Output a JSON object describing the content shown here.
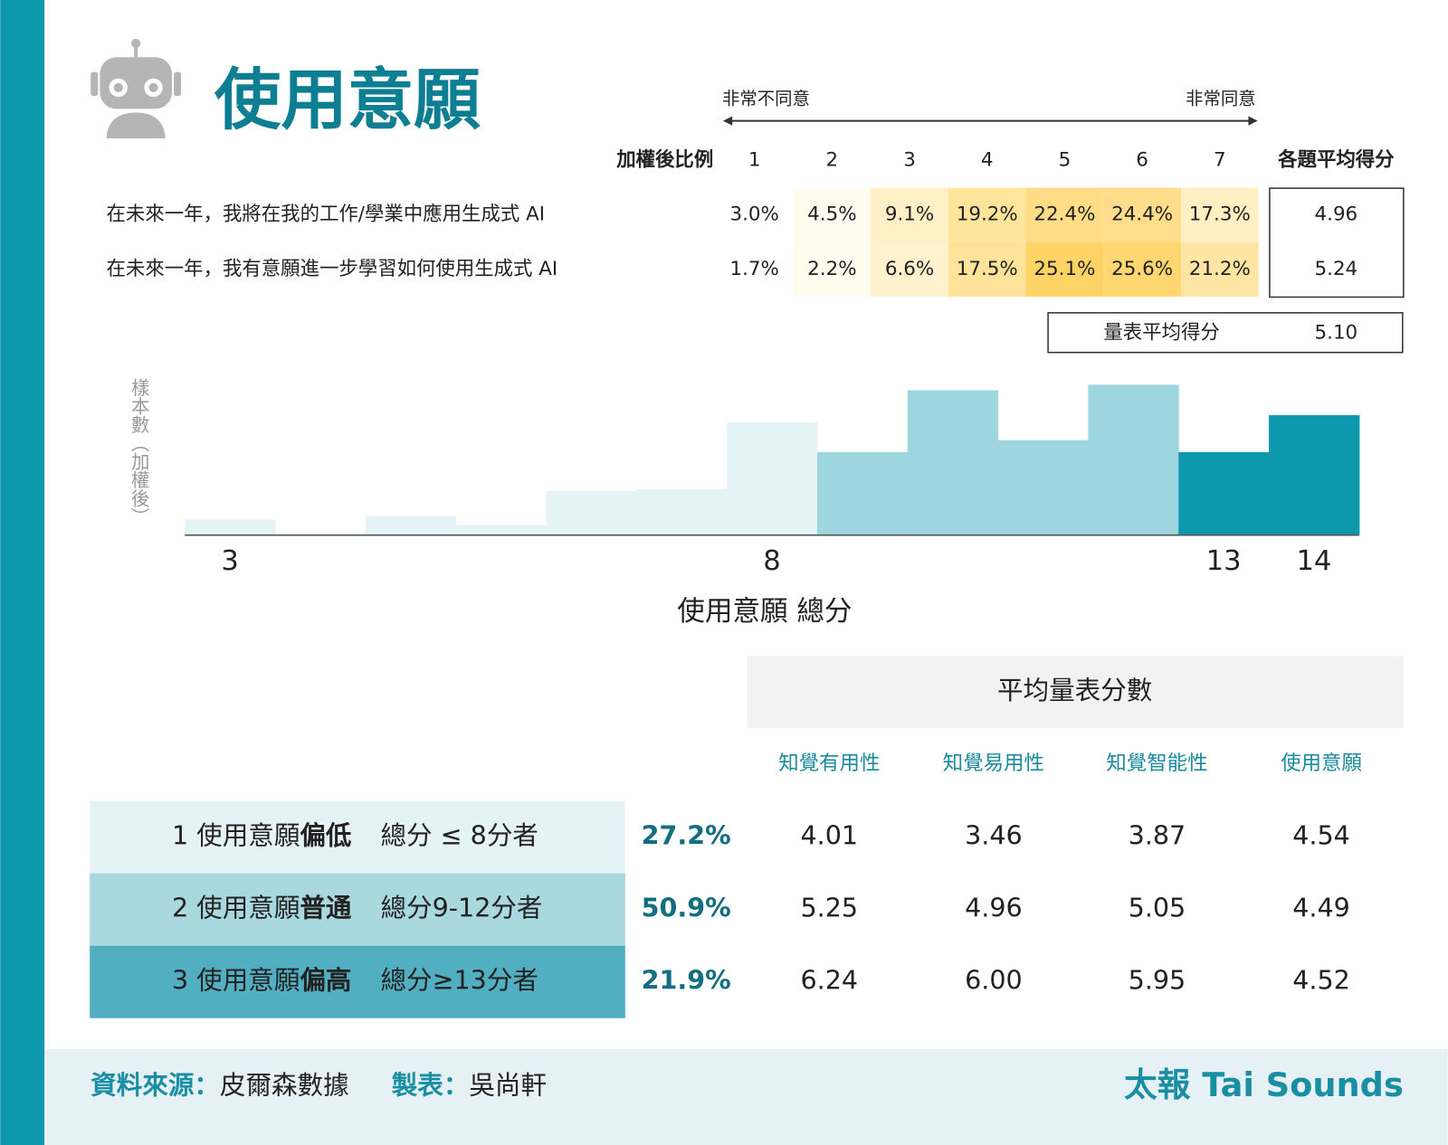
{
  "header": {
    "title": "使用意願"
  },
  "likert_table": {
    "left_label": "非常不同意",
    "right_label": "非常同意",
    "header_label": "加權後比例",
    "scale": [
      "1",
      "2",
      "3",
      "4",
      "5",
      "6",
      "7"
    ],
    "mean_header": "各題平均得分",
    "rows": [
      {
        "question": "在未來一年，我將在我的工作/學業中應用生成式 AI",
        "cells": [
          "3.0%",
          "4.5%",
          "9.1%",
          "19.2%",
          "22.4%",
          "24.4%",
          "17.3%"
        ],
        "colors": [
          "#ffffff",
          "#fffbef",
          "#fff0c6",
          "#ffe49c",
          "#ffdc86",
          "#ffdd8a",
          "#ffefc2"
        ],
        "mean": "4.96"
      },
      {
        "question": "在未來一年，我有意願進一步學習如何使用生成式 AI",
        "cells": [
          "1.7%",
          "2.2%",
          "6.6%",
          "17.5%",
          "25.1%",
          "25.6%",
          "21.2%"
        ],
        "colors": [
          "#ffffff",
          "#fffbee",
          "#fff2cc",
          "#ffe39a",
          "#ffd466",
          "#ffd770",
          "#ffe5a4"
        ],
        "mean": "5.24"
      }
    ],
    "scale_mean_label": "量表平均得分",
    "scale_mean": "5.10"
  },
  "chart_data": {
    "type": "bar",
    "y_label": "樣本數（加權後）",
    "x_label": "使用意願 總分",
    "categories": [
      "3",
      null,
      null,
      null,
      null,
      null,
      "8",
      null,
      null,
      null,
      null,
      "13",
      "14"
    ],
    "values": [
      17,
      2,
      21,
      11,
      48,
      50,
      122,
      90,
      157,
      103,
      163,
      90,
      130
    ],
    "colors": [
      "#e6f3f6",
      "#e6f3f6",
      "#e6f3f6",
      "#e6f3f6",
      "#e6f3f6",
      "#e6f3f6",
      "#e6f3f6",
      "#9dd6df",
      "#9dd6df",
      "#9dd6df",
      "#9dd6df",
      "#0e98ae",
      "#0e98ae"
    ],
    "ylim": [
      0,
      170
    ]
  },
  "group_table": {
    "title": "平均量表分數",
    "columns": [
      "知覺有用性",
      "知覺易用性",
      "知覺智能性",
      "使用意願"
    ],
    "rows": [
      {
        "label": "1 使用意願",
        "level": "偏低",
        "criterion": "總分 ≤ 8分者",
        "share": "27.2%",
        "scores": [
          "4.01",
          "3.46",
          "3.87",
          "4.54"
        ],
        "color": "#e6f3f6"
      },
      {
        "label": "2 使用意願",
        "level": "普通",
        "criterion": "總分9-12分者",
        "share": "50.9%",
        "scores": [
          "5.25",
          "4.96",
          "5.05",
          "4.49"
        ],
        "color": "#a9d8df"
      },
      {
        "label": "3 使用意願",
        "level": "偏高",
        "criterion": "總分≥13分者",
        "share": "21.9%",
        "scores": [
          "6.24",
          "6.00",
          "5.95",
          "4.52"
        ],
        "color": "#52afc1"
      }
    ]
  },
  "footer": {
    "source_label": "資料來源：",
    "source": "皮爾森數據",
    "author_label": "製表：",
    "author": "吳尚軒",
    "brand": "太報 Tai Sounds"
  }
}
